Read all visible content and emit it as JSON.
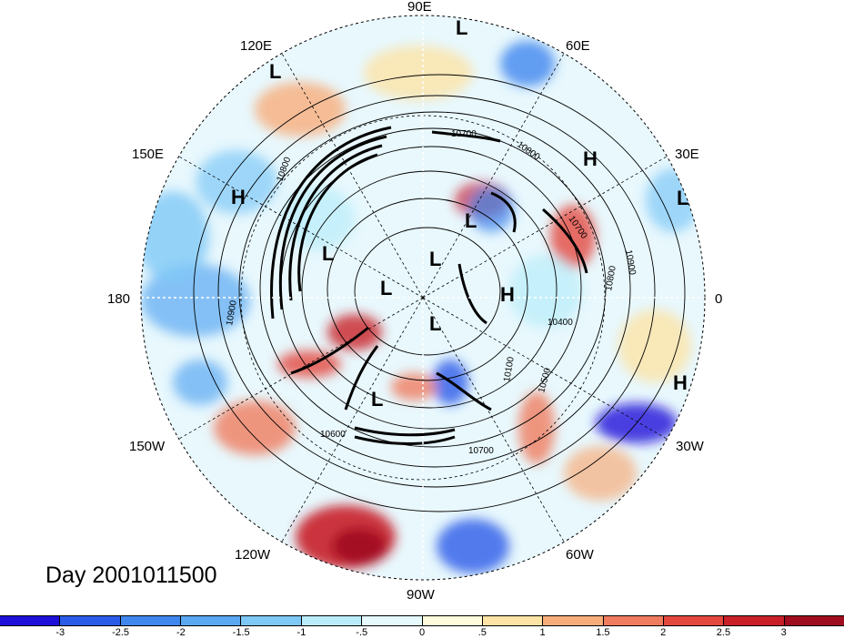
{
  "map": {
    "title": "Day 2001011500",
    "longitude_labels": [
      {
        "id": "lon-90e",
        "text": "90E"
      },
      {
        "id": "lon-60e",
        "text": "60E"
      },
      {
        "id": "lon-30e",
        "text": "30E"
      },
      {
        "id": "lon-0",
        "text": "0"
      },
      {
        "id": "lon-30w",
        "text": "30W"
      },
      {
        "id": "lon-60w",
        "text": "60W"
      },
      {
        "id": "lon-90w",
        "text": "90W"
      },
      {
        "id": "lon-120w",
        "text": "120W"
      },
      {
        "id": "lon-150w",
        "text": "150W"
      },
      {
        "id": "lon-180",
        "text": "180"
      },
      {
        "id": "lon-150e",
        "text": "150E"
      },
      {
        "id": "lon-120e",
        "text": "120E"
      }
    ],
    "pressure_centers": [
      "L",
      "H",
      "L",
      "H",
      "L",
      "L",
      "L",
      "L",
      "L",
      "H",
      "L",
      "H",
      "L"
    ],
    "contour_labels": [
      "10700",
      "10800",
      "10700",
      "10900",
      "10800",
      "10900",
      "10400",
      "10800",
      "10100",
      "10500",
      "10600",
      "10700"
    ],
    "colorbar": {
      "ticks": [
        "-3",
        "-2.5",
        "-2",
        "-1.5",
        "-1",
        "-.5",
        "0",
        ".5",
        "1",
        "1.5",
        "2",
        "2.5",
        "3"
      ],
      "colors": [
        "#1e10d8",
        "#2a5be8",
        "#3f86ee",
        "#5aa8f2",
        "#7ec8f6",
        "#b8ecfa",
        "#e6fafd",
        "#fffbdc",
        "#fde3a6",
        "#f7ad7a",
        "#ef7c5e",
        "#e4473d",
        "#c81f28",
        "#a00d1f"
      ]
    }
  }
}
